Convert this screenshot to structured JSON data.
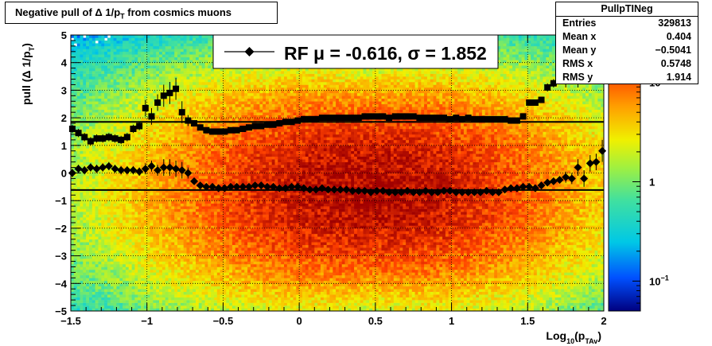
{
  "title_main": "Negative pull of ",
  "title_delta": "Δ",
  "title_rest": " 1/p",
  "title_sub": "T",
  "title_tail": " from cosmics muons",
  "stats": {
    "name": "PullpTINeg",
    "rows": [
      {
        "label": "Entries",
        "value": "329813"
      },
      {
        "label": "Mean x",
        "value": "0.404"
      },
      {
        "label": "Mean y",
        "value": "−0.5041"
      },
      {
        "label": "RMS x",
        "value": "0.5748"
      },
      {
        "label": "RMS y",
        "value": "1.914"
      }
    ]
  },
  "legend_text": "RF μ = -0.616, σ =   1.852",
  "colors": {
    "marker": "#000000",
    "fit_line": "#000000"
  },
  "chart_data": {
    "type": "heatmap",
    "xlabel_main": "Log",
    "xlabel_sub1": "10",
    "xlabel_mid": "(p",
    "xlabel_sub2": "TAv",
    "xlabel_end": ")",
    "ylabel_main": "pull (Δ 1/p",
    "ylabel_sub": "T",
    "ylabel_end": ")",
    "xlim": [
      -1.5,
      2
    ],
    "ylim": [
      -5,
      5
    ],
    "grid": true,
    "x_ticks": [
      {
        "value": -1.5,
        "label": "−1.5"
      },
      {
        "value": -1,
        "label": "−1"
      },
      {
        "value": -0.5,
        "label": "−0.5"
      },
      {
        "value": 0,
        "label": "0"
      },
      {
        "value": 0.5,
        "label": "0.5"
      },
      {
        "value": 1,
        "label": "1"
      },
      {
        "value": 1.5,
        "label": "1.5"
      },
      {
        "value": 2,
        "label": "2"
      }
    ],
    "y_ticks": [
      {
        "value": -5,
        "label": "−5"
      },
      {
        "value": -4,
        "label": "−4"
      },
      {
        "value": -3,
        "label": "−3"
      },
      {
        "value": -2,
        "label": "−2"
      },
      {
        "value": -1,
        "label": "−1"
      },
      {
        "value": 0,
        "label": "0"
      },
      {
        "value": 1,
        "label": "1"
      },
      {
        "value": 2,
        "label": "2"
      },
      {
        "value": 3,
        "label": "3"
      },
      {
        "value": 4,
        "label": "4"
      },
      {
        "value": 5,
        "label": "5"
      }
    ],
    "z_scale": "log",
    "z_range": [
      0.05,
      30
    ],
    "z_ticks": [
      {
        "value": 10,
        "base": "10",
        "exp": ""
      },
      {
        "value": 1,
        "base": "1",
        "exp": ""
      },
      {
        "value": 0.1,
        "base": "10",
        "exp": "−1"
      }
    ],
    "mean_line": -0.616,
    "sigma_line": 1.852,
    "mean_points": {
      "x": [
        -1.49,
        -1.45,
        -1.41,
        -1.37,
        -1.33,
        -1.29,
        -1.25,
        -1.21,
        -1.17,
        -1.13,
        -1.09,
        -1.05,
        -1.01,
        -0.97,
        -0.93,
        -0.89,
        -0.85,
        -0.81,
        -0.77,
        -0.73,
        -0.69,
        -0.65,
        -0.61,
        -0.57,
        -0.53,
        -0.49,
        -0.45,
        -0.41,
        -0.37,
        -0.33,
        -0.29,
        -0.25,
        -0.21,
        -0.17,
        -0.13,
        -0.09,
        -0.05,
        -0.01,
        0.03,
        0.07,
        0.11,
        0.15,
        0.19,
        0.23,
        0.27,
        0.31,
        0.35,
        0.39,
        0.43,
        0.47,
        0.51,
        0.55,
        0.59,
        0.63,
        0.67,
        0.71,
        0.75,
        0.79,
        0.83,
        0.87,
        0.91,
        0.95,
        0.99,
        1.03,
        1.07,
        1.11,
        1.15,
        1.19,
        1.23,
        1.27,
        1.31,
        1.35,
        1.39,
        1.43,
        1.47,
        1.51,
        1.55,
        1.59,
        1.63,
        1.67,
        1.71,
        1.75,
        1.79,
        1.83,
        1.87,
        1.91,
        1.95,
        1.99
      ],
      "y": [
        0.0,
        0.15,
        0.1,
        0.2,
        0.15,
        0.2,
        0.25,
        0.15,
        0.1,
        0.1,
        0.1,
        0.05,
        0.15,
        0.25,
        0.1,
        0.2,
        0.2,
        0.15,
        0.1,
        0.0,
        -0.3,
        -0.45,
        -0.5,
        -0.5,
        -0.55,
        -0.55,
        -0.5,
        -0.5,
        -0.5,
        -0.5,
        -0.45,
        -0.45,
        -0.5,
        -0.5,
        -0.55,
        -0.55,
        -0.5,
        -0.5,
        -0.55,
        -0.6,
        -0.6,
        -0.55,
        -0.6,
        -0.6,
        -0.6,
        -0.6,
        -0.65,
        -0.65,
        -0.65,
        -0.7,
        -0.65,
        -0.65,
        -0.7,
        -0.7,
        -0.7,
        -0.65,
        -0.7,
        -0.7,
        -0.65,
        -0.7,
        -0.7,
        -0.65,
        -0.65,
        -0.7,
        -0.7,
        -0.7,
        -0.7,
        -0.7,
        -0.65,
        -0.7,
        -0.7,
        -0.6,
        -0.55,
        -0.55,
        -0.5,
        -0.5,
        -0.55,
        -0.45,
        -0.35,
        -0.3,
        -0.25,
        -0.15,
        -0.2,
        0.2,
        -0.2,
        0.35,
        0.4,
        0.8
      ],
      "yerr": [
        0.15,
        0.15,
        0.15,
        0.15,
        0.15,
        0.15,
        0.15,
        0.15,
        0.15,
        0.15,
        0.15,
        0.15,
        0.2,
        0.2,
        0.2,
        0.3,
        0.3,
        0.3,
        0.3,
        0.2,
        0.1,
        0.05,
        0.05,
        0.05,
        0.05,
        0.05,
        0.05,
        0.05,
        0.05,
        0.05,
        0.05,
        0.05,
        0.05,
        0.05,
        0.05,
        0.05,
        0.05,
        0.05,
        0.05,
        0.05,
        0.05,
        0.05,
        0.05,
        0.05,
        0.05,
        0.05,
        0.05,
        0.05,
        0.05,
        0.05,
        0.05,
        0.05,
        0.05,
        0.05,
        0.05,
        0.05,
        0.05,
        0.05,
        0.05,
        0.05,
        0.05,
        0.05,
        0.05,
        0.05,
        0.05,
        0.05,
        0.05,
        0.05,
        0.05,
        0.05,
        0.05,
        0.05,
        0.05,
        0.05,
        0.05,
        0.05,
        0.05,
        0.05,
        0.1,
        0.1,
        0.1,
        0.2,
        0.2,
        0.3,
        0.3,
        0.3,
        0.3,
        0.4
      ]
    },
    "sigma_points": {
      "x": [
        -1.49,
        -1.45,
        -1.41,
        -1.37,
        -1.33,
        -1.29,
        -1.25,
        -1.21,
        -1.17,
        -1.13,
        -1.09,
        -1.05,
        -1.01,
        -0.97,
        -0.93,
        -0.89,
        -0.85,
        -0.81,
        -0.77,
        -0.73,
        -0.69,
        -0.65,
        -0.61,
        -0.57,
        -0.53,
        -0.49,
        -0.45,
        -0.41,
        -0.37,
        -0.33,
        -0.29,
        -0.25,
        -0.21,
        -0.17,
        -0.13,
        -0.09,
        -0.05,
        -0.01,
        0.03,
        0.07,
        0.11,
        0.15,
        0.19,
        0.23,
        0.27,
        0.31,
        0.35,
        0.39,
        0.43,
        0.47,
        0.51,
        0.55,
        0.59,
        0.63,
        0.67,
        0.71,
        0.75,
        0.79,
        0.83,
        0.87,
        0.91,
        0.95,
        0.99,
        1.03,
        1.07,
        1.11,
        1.15,
        1.19,
        1.23,
        1.27,
        1.31,
        1.35,
        1.39,
        1.43,
        1.47,
        1.51,
        1.55,
        1.59,
        1.63,
        1.67,
        1.71,
        1.75,
        1.79,
        1.83,
        1.87,
        1.91,
        1.95,
        1.99
      ],
      "y": [
        1.6,
        1.45,
        1.3,
        1.15,
        1.25,
        1.25,
        1.3,
        1.25,
        1.2,
        1.3,
        1.6,
        1.7,
        2.35,
        2.05,
        2.55,
        2.8,
        2.9,
        3.05,
        2.2,
        1.9,
        1.8,
        1.65,
        1.55,
        1.5,
        1.5,
        1.5,
        1.55,
        1.55,
        1.6,
        1.65,
        1.7,
        1.7,
        1.75,
        1.75,
        1.8,
        1.85,
        1.85,
        1.9,
        1.95,
        1.95,
        1.95,
        2.0,
        2.0,
        2.0,
        2.0,
        2.0,
        2.0,
        2.0,
        2.05,
        2.05,
        2.05,
        2.05,
        2.0,
        2.05,
        2.05,
        2.05,
        2.05,
        2.0,
        2.0,
        2.0,
        2.0,
        2.0,
        1.95,
        2.0,
        1.95,
        2.0,
        1.95,
        1.95,
        1.95,
        1.95,
        1.95,
        1.95,
        1.9,
        1.9,
        2.05,
        2.55,
        2.55,
        2.65,
        3.1,
        3.25,
        3.5,
        3.4,
        4.15,
        3.5,
        4.6,
        4.35,
        4.45,
        3.8
      ],
      "yerr": [
        0.15,
        0.15,
        0.15,
        0.15,
        0.15,
        0.15,
        0.15,
        0.15,
        0.15,
        0.15,
        0.15,
        0.15,
        0.3,
        0.3,
        0.3,
        0.4,
        0.4,
        0.4,
        0.4,
        0.2,
        0.1,
        0.05,
        0.05,
        0.05,
        0.05,
        0.05,
        0.05,
        0.05,
        0.05,
        0.05,
        0.05,
        0.05,
        0.05,
        0.05,
        0.05,
        0.05,
        0.05,
        0.05,
        0.05,
        0.05,
        0.05,
        0.05,
        0.05,
        0.05,
        0.05,
        0.05,
        0.05,
        0.05,
        0.05,
        0.05,
        0.05,
        0.05,
        0.05,
        0.05,
        0.05,
        0.05,
        0.05,
        0.05,
        0.05,
        0.05,
        0.05,
        0.05,
        0.05,
        0.05,
        0.05,
        0.05,
        0.05,
        0.05,
        0.05,
        0.05,
        0.05,
        0.05,
        0.05,
        0.05,
        0.1,
        0.1,
        0.1,
        0.1,
        0.15,
        0.15,
        0.2,
        0.3,
        0.3,
        0.4,
        0.4,
        0.4,
        0.4,
        0.5
      ]
    }
  }
}
